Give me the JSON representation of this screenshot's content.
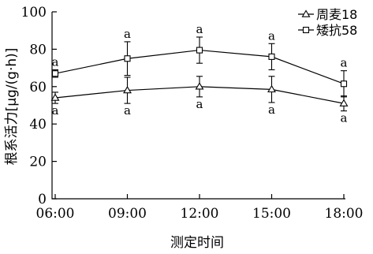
{
  "chart_data": {
    "type": "line",
    "xlabel": "测定时间",
    "ylabel": "根系活力[μg/(g·h)]",
    "categories": [
      "06:00",
      "09:00",
      "12:00",
      "15:00",
      "18:00"
    ],
    "ylim": [
      0,
      100
    ],
    "yticks": [
      0,
      20,
      40,
      60,
      80,
      100
    ],
    "grid": false,
    "legend_position": "top-right",
    "series": [
      {
        "name": "周麦18",
        "marker": "triangle",
        "values": [
          54,
          58,
          60,
          58.5,
          51
        ],
        "error": [
          3,
          7,
          5.5,
          7,
          4
        ],
        "significance": [
          "a",
          "a",
          "a",
          "a",
          "a"
        ]
      },
      {
        "name": "矮抗58",
        "marker": "square",
        "values": [
          67,
          75,
          79.5,
          76,
          61.5
        ],
        "error": [
          2,
          9,
          7,
          7,
          7
        ],
        "significance": [
          "a",
          "a",
          "a",
          "a",
          "a"
        ]
      }
    ]
  }
}
